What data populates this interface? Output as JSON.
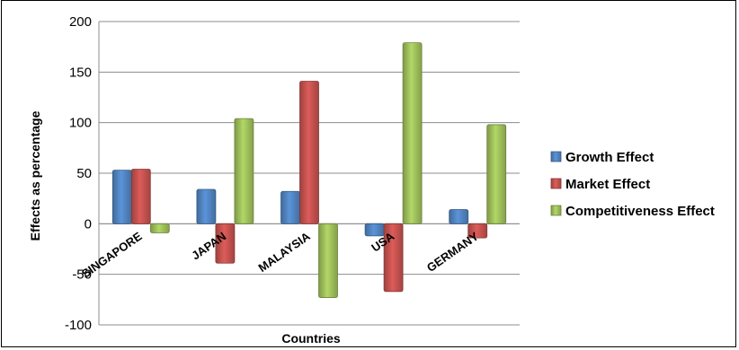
{
  "chart_data": {
    "type": "bar",
    "categories": [
      "SINGAPORE",
      "JAPAN",
      "MALAYSIA",
      "USA",
      "GERMANY"
    ],
    "series": [
      {
        "name": "Growth Effect",
        "color": "#4F81BD",
        "values": [
          53,
          34,
          32,
          -12,
          14
        ]
      },
      {
        "name": "Market Effect",
        "color": "#C0504D",
        "values": [
          54,
          -39,
          141,
          -67,
          -14
        ]
      },
      {
        "name": "Competitiveness Effect",
        "color": "#9BBB59",
        "values": [
          -9,
          104,
          -73,
          179,
          98
        ]
      }
    ],
    "xlabel": "Countries",
    "ylabel": "Effects as percentage",
    "ylim": [
      -100,
      200
    ],
    "yticks": [
      "-100",
      "-50",
      "0",
      "50",
      "100",
      "150",
      "200"
    ],
    "grid": true,
    "legend_position": "right"
  }
}
